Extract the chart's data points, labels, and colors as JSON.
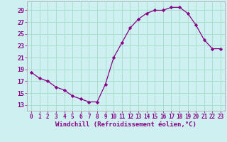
{
  "x": [
    0,
    1,
    2,
    3,
    4,
    5,
    6,
    7,
    8,
    9,
    10,
    11,
    12,
    13,
    14,
    15,
    16,
    17,
    18,
    19,
    20,
    21,
    22,
    23
  ],
  "y": [
    18.5,
    17.5,
    17.0,
    16.0,
    15.5,
    14.5,
    14.0,
    13.5,
    13.5,
    16.5,
    21.0,
    23.5,
    26.0,
    27.5,
    28.5,
    29.0,
    29.0,
    29.5,
    29.5,
    28.5,
    26.5,
    24.0,
    22.5,
    22.5
  ],
  "line_color": "#880088",
  "marker": "D",
  "marker_size": 2.2,
  "bg_color": "#cff0f0",
  "grid_color": "#aaddcc",
  "xlabel": "Windchill (Refroidissement éolien,°C)",
  "xlabel_color": "#880088",
  "ylabel_ticks": [
    13,
    15,
    17,
    19,
    21,
    23,
    25,
    27,
    29
  ],
  "xtick_labels": [
    "0",
    "1",
    "2",
    "3",
    "4",
    "5",
    "6",
    "7",
    "8",
    "9",
    "10",
    "11",
    "12",
    "13",
    "14",
    "15",
    "16",
    "17",
    "18",
    "19",
    "20",
    "21",
    "22",
    "23"
  ],
  "ylim": [
    12.0,
    30.5
  ],
  "xlim": [
    -0.5,
    23.5
  ],
  "tick_color": "#880088",
  "spine_color": "#aaaaaa",
  "tick_fontsize": 5.5,
  "xlabel_fontsize": 6.5
}
